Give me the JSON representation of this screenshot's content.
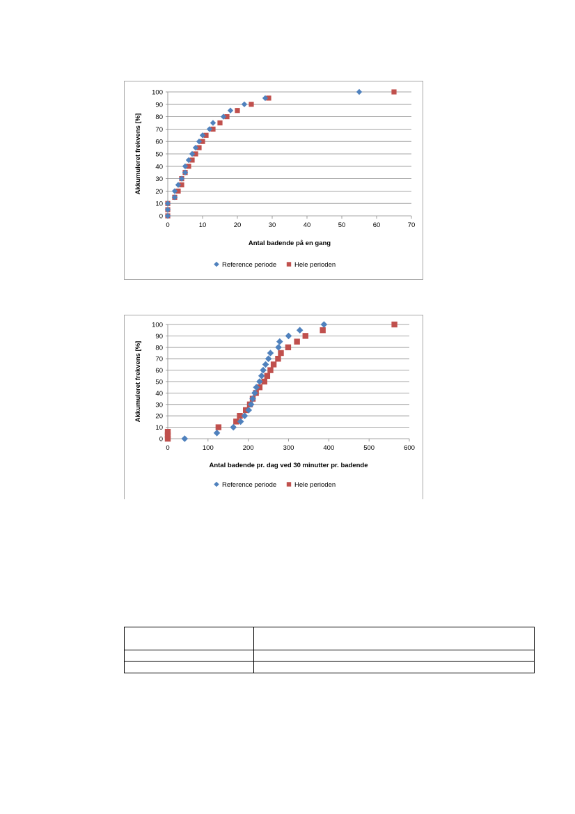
{
  "charts": [
    {
      "id": "chart1",
      "chart_data": {
        "type": "scatter",
        "xlabel": "Antal badende på en gang",
        "ylabel": "Akkumuleret frekvens [%]",
        "xlim": [
          0,
          70
        ],
        "ylim": [
          0,
          100
        ],
        "xticks": [
          0,
          10,
          20,
          30,
          40,
          50,
          60,
          70
        ],
        "yticks": [
          0,
          10,
          20,
          30,
          40,
          50,
          60,
          70,
          80,
          90,
          100
        ],
        "grid": "horizontal",
        "legend": "bottom",
        "series": [
          {
            "name": "Reference periode",
            "marker": "diamond",
            "color": "#4f81bd",
            "points": [
              [
                0,
                0
              ],
              [
                0,
                5
              ],
              [
                0,
                10
              ],
              [
                2,
                15
              ],
              [
                2,
                20
              ],
              [
                3,
                25
              ],
              [
                4,
                30
              ],
              [
                5,
                35
              ],
              [
                5,
                40
              ],
              [
                6,
                45
              ],
              [
                7,
                50
              ],
              [
                8,
                55
              ],
              [
                9,
                60
              ],
              [
                10,
                65
              ],
              [
                12,
                70
              ],
              [
                13,
                75
              ],
              [
                16,
                80
              ],
              [
                18,
                85
              ],
              [
                22,
                90
              ],
              [
                28,
                95
              ],
              [
                55,
                100
              ]
            ]
          },
          {
            "name": "Hele perioden",
            "marker": "square",
            "color": "#c0504d",
            "points": [
              [
                0,
                0
              ],
              [
                0,
                5
              ],
              [
                0,
                10
              ],
              [
                2,
                15
              ],
              [
                3,
                20
              ],
              [
                4,
                25
              ],
              [
                4,
                30
              ],
              [
                5,
                35
              ],
              [
                6,
                40
              ],
              [
                7,
                45
              ],
              [
                8,
                50
              ],
              [
                9,
                55
              ],
              [
                10,
                60
              ],
              [
                11,
                65
              ],
              [
                13,
                70
              ],
              [
                15,
                75
              ],
              [
                17,
                80
              ],
              [
                20,
                85
              ],
              [
                24,
                90
              ],
              [
                29,
                95
              ],
              [
                65,
                100
              ]
            ]
          }
        ]
      }
    },
    {
      "id": "chart2",
      "chart_data": {
        "type": "scatter",
        "xlabel": "Antal badende pr. dag ved 30 minutter pr. badende",
        "ylabel": "Akkumuleret frekvens [%]",
        "xlim": [
          0,
          600
        ],
        "ylim": [
          0,
          100
        ],
        "xticks": [
          0,
          100,
          200,
          300,
          400,
          500,
          600
        ],
        "yticks": [
          0,
          10,
          20,
          30,
          40,
          50,
          60,
          70,
          80,
          90,
          100
        ],
        "grid": "horizontal",
        "legend": "bottom",
        "series": [
          {
            "name": "Reference periode",
            "marker": "diamond",
            "color": "#4f81bd",
            "points": [
              [
                42,
                0
              ],
              [
                122,
                5
              ],
              [
                163,
                10
              ],
              [
                181,
                15
              ],
              [
                191,
                20
              ],
              [
                201,
                25
              ],
              [
                207,
                30
              ],
              [
                211,
                35
              ],
              [
                216,
                40
              ],
              [
                220,
                45
              ],
              [
                228,
                50
              ],
              [
                233,
                55
              ],
              [
                237,
                60
              ],
              [
                243,
                65
              ],
              [
                250,
                70
              ],
              [
                255,
                75
              ],
              [
                275,
                80
              ],
              [
                278,
                85
              ],
              [
                300,
                90
              ],
              [
                328,
                95
              ],
              [
                388,
                100
              ]
            ]
          },
          {
            "name": "Hele perioden",
            "marker": "square",
            "color": "#c0504d",
            "points": [
              [
                0,
                0
              ],
              [
                0,
                3
              ],
              [
                0,
                6
              ],
              [
                126,
                10
              ],
              [
                170,
                15
              ],
              [
                179,
                20
              ],
              [
                194,
                25
              ],
              [
                204,
                30
              ],
              [
                211,
                35
              ],
              [
                219,
                40
              ],
              [
                228,
                45
              ],
              [
                240,
                50
              ],
              [
                247,
                55
              ],
              [
                255,
                60
              ],
              [
                263,
                65
              ],
              [
                274,
                70
              ],
              [
                281,
                75
              ],
              [
                299,
                80
              ],
              [
                321,
                85
              ],
              [
                342,
                90
              ],
              [
                385,
                95
              ],
              [
                563,
                100
              ]
            ]
          }
        ]
      }
    }
  ],
  "table": {
    "rows": [
      [
        "",
        ""
      ],
      [
        "",
        ""
      ],
      [
        "",
        ""
      ]
    ]
  }
}
